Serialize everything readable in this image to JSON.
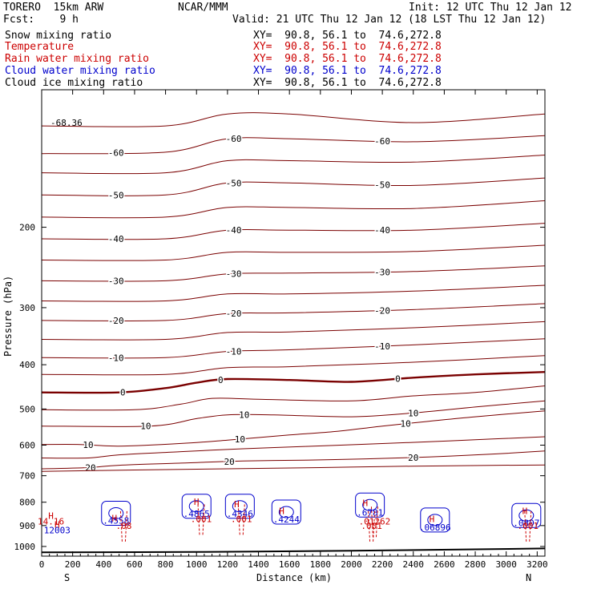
{
  "header": {
    "model": "TORERO  15km ARW",
    "org": "NCAR/MMM",
    "init": "Init: 12 UTC Thu 12 Jan 12",
    "fcst": "Fcst:    9 h",
    "valid": "Valid: 21 UTC Thu 12 Jan 12 (18 LST Thu 12 Jan 12)"
  },
  "legend": [
    {
      "name": "Snow mixing ratio",
      "color": "#000000",
      "xy": "XY=  90.8, 56.1 to  74.6,272.8",
      "xy_color": "#000000"
    },
    {
      "name": "Temperature",
      "color": "#cc0000",
      "xy": "XY=  90.8, 56.1 to  74.6,272.8",
      "xy_color": "#cc0000"
    },
    {
      "name": "Rain water mixing ratio",
      "color": "#cc0000",
      "xy": "XY=  90.8, 56.1 to  74.6,272.8",
      "xy_color": "#cc0000"
    },
    {
      "name": "Cloud water mixing ratio",
      "color": "#0000cc",
      "xy": "XY=  90.8, 56.1 to  74.6,272.8",
      "xy_color": "#0000cc"
    },
    {
      "name": "Cloud ice mixing ratio",
      "color": "#000000",
      "xy": "XY=  90.8, 56.1 to  74.6,272.8",
      "xy_color": "#000000"
    }
  ],
  "chart_data": {
    "type": "contour",
    "xlabel": "Distance (km)",
    "ylabel": "Pressure (hPa)",
    "x_range": [
      0,
      3250
    ],
    "y_range": [
      1050,
      100
    ],
    "x_ticks": [
      0,
      200,
      400,
      600,
      800,
      1000,
      1200,
      1400,
      1600,
      1800,
      2000,
      2200,
      2400,
      2600,
      2800,
      3000,
      3200
    ],
    "y_ticks": [
      200,
      300,
      400,
      500,
      600,
      700,
      800,
      900,
      1000
    ],
    "y_log_scale": true,
    "left_end": "S",
    "right_end": "N",
    "temperature_color": "#7a0000",
    "cloud_color": "#0000cc",
    "rain_color": "#cc0000",
    "temperature_isotherms": [
      {
        "temp": -65,
        "points": [
          [
            0,
            120
          ],
          [
            800,
            120
          ],
          [
            1200,
            113
          ],
          [
            1600,
            113
          ],
          [
            2400,
            118
          ],
          [
            3250,
            113
          ]
        ]
      },
      {
        "temp": -60,
        "points": [
          [
            0,
            138
          ],
          [
            800,
            137
          ],
          [
            1200,
            128
          ],
          [
            1600,
            128
          ],
          [
            2400,
            130
          ],
          [
            3250,
            126
          ]
        ]
      },
      {
        "temp": -55,
        "points": [
          [
            0,
            152
          ],
          [
            800,
            152
          ],
          [
            1200,
            143
          ],
          [
            1600,
            143
          ],
          [
            2400,
            144
          ],
          [
            3250,
            139
          ]
        ]
      },
      {
        "temp": -50,
        "points": [
          [
            0,
            170
          ],
          [
            800,
            170
          ],
          [
            1200,
            160
          ],
          [
            1600,
            160
          ],
          [
            2400,
            162
          ],
          [
            3250,
            156
          ]
        ]
      },
      {
        "temp": -45,
        "points": [
          [
            0,
            190
          ],
          [
            800,
            190
          ],
          [
            1200,
            181
          ],
          [
            1600,
            181
          ],
          [
            2400,
            182
          ],
          [
            3250,
            175
          ]
        ]
      },
      {
        "temp": -40,
        "points": [
          [
            0,
            212
          ],
          [
            800,
            212
          ],
          [
            1200,
            203
          ],
          [
            1600,
            203
          ],
          [
            2400,
            203
          ],
          [
            3250,
            196
          ]
        ]
      },
      {
        "temp": -35,
        "points": [
          [
            0,
            236
          ],
          [
            800,
            236
          ],
          [
            1200,
            227
          ],
          [
            1600,
            227
          ],
          [
            2400,
            226
          ],
          [
            3250,
            219
          ]
        ]
      },
      {
        "temp": -30,
        "points": [
          [
            0,
            262
          ],
          [
            800,
            262
          ],
          [
            1200,
            253
          ],
          [
            1600,
            252
          ],
          [
            2400,
            250
          ],
          [
            3250,
            243
          ]
        ]
      },
      {
        "temp": -25,
        "points": [
          [
            0,
            290
          ],
          [
            800,
            290
          ],
          [
            1200,
            280
          ],
          [
            1600,
            280
          ],
          [
            2400,
            276
          ],
          [
            3250,
            268
          ]
        ]
      },
      {
        "temp": -20,
        "points": [
          [
            0,
            320
          ],
          [
            800,
            320
          ],
          [
            1200,
            309
          ],
          [
            1600,
            308
          ],
          [
            2400,
            303
          ],
          [
            3250,
            294
          ]
        ]
      },
      {
        "temp": -15,
        "points": [
          [
            0,
            352
          ],
          [
            800,
            352
          ],
          [
            1200,
            340
          ],
          [
            1600,
            339
          ],
          [
            2400,
            332
          ],
          [
            3250,
            322
          ]
        ]
      },
      {
        "temp": -10,
        "points": [
          [
            0,
            386
          ],
          [
            800,
            386
          ],
          [
            1200,
            374
          ],
          [
            1600,
            371
          ],
          [
            2400,
            362
          ],
          [
            3250,
            351
          ]
        ]
      },
      {
        "temp": -5,
        "points": [
          [
            0,
            420
          ],
          [
            800,
            420
          ],
          [
            1200,
            406
          ],
          [
            1600,
            404
          ],
          [
            2400,
            395
          ],
          [
            3250,
            382
          ]
        ]
      },
      {
        "temp": 0,
        "points": [
          [
            0,
            460
          ],
          [
            500,
            460
          ],
          [
            800,
            450
          ],
          [
            1000,
            438
          ],
          [
            1200,
            430
          ],
          [
            1600,
            432
          ],
          [
            2000,
            436
          ],
          [
            2400,
            427
          ],
          [
            2800,
            420
          ],
          [
            3250,
            415
          ]
        ]
      },
      {
        "temp": 5,
        "points": [
          [
            0,
            502
          ],
          [
            600,
            502
          ],
          [
            900,
            488
          ],
          [
            1100,
            474
          ],
          [
            1400,
            476
          ],
          [
            2000,
            480
          ],
          [
            2400,
            468
          ],
          [
            2800,
            460
          ],
          [
            3250,
            445
          ]
        ]
      },
      {
        "temp": 10,
        "points": [
          [
            0,
            545
          ],
          [
            700,
            545
          ],
          [
            1000,
            525
          ],
          [
            1200,
            515
          ],
          [
            1500,
            515
          ],
          [
            2000,
            520
          ],
          [
            2400,
            510
          ],
          [
            2800,
            495
          ],
          [
            3250,
            480
          ]
        ]
      },
      {
        "temp": 10,
        "points": [
          [
            0,
            598
          ],
          [
            250,
            598
          ],
          [
            500,
            603
          ],
          [
            900,
            595
          ],
          [
            1200,
            585
          ],
          [
            1600,
            570
          ],
          [
            1900,
            560
          ],
          [
            2200,
            545
          ],
          [
            2500,
            532
          ],
          [
            2800,
            520
          ],
          [
            3250,
            505
          ]
        ]
      },
      {
        "temp": 15,
        "points": [
          [
            0,
            640
          ],
          [
            300,
            640
          ],
          [
            500,
            630
          ],
          [
            900,
            620
          ],
          [
            1300,
            611
          ],
          [
            1700,
            604
          ],
          [
            2100,
            597
          ],
          [
            2500,
            590
          ],
          [
            2900,
            582
          ],
          [
            3250,
            575
          ]
        ]
      },
      {
        "temp": 20,
        "points": [
          [
            0,
            676
          ],
          [
            300,
            672
          ],
          [
            500,
            664
          ],
          [
            900,
            657
          ],
          [
            1300,
            650
          ],
          [
            1700,
            647
          ],
          [
            2100,
            643
          ],
          [
            2500,
            637
          ],
          [
            2900,
            628
          ],
          [
            3250,
            618
          ]
        ]
      },
      {
        "temp": 25,
        "points": [
          [
            0,
            685
          ],
          [
            600,
            680
          ],
          [
            1200,
            676
          ],
          [
            1800,
            672
          ],
          [
            2400,
            667
          ],
          [
            3250,
            663
          ]
        ]
      }
    ],
    "ground_surface": [
      [
        0,
        1030
      ],
      [
        1000,
        1028
      ],
      [
        2000,
        1022
      ],
      [
        3250,
        1010
      ]
    ],
    "cloud_water_features": [
      {
        "x": 480,
        "p": 870,
        "label": ".4558"
      },
      {
        "x": 1000,
        "p": 840,
        "label": ".4865"
      },
      {
        "x": 1280,
        "p": 840,
        "label": ".4346"
      },
      {
        "x": 1580,
        "p": 865,
        "label": ".4244"
      },
      {
        "x": 2120,
        "p": 835,
        "label": ".6781"
      },
      {
        "x": 2540,
        "p": 900,
        "label": ".06896"
      },
      {
        "x": 3130,
        "p": 880,
        "label": ".0807"
      }
    ],
    "rain_features": [
      {
        "x": 530,
        "p": 900,
        "label": ".08"
      },
      {
        "x": 1030,
        "p": 870,
        "label": ".001"
      },
      {
        "x": 1290,
        "p": 870,
        "label": ".001"
      },
      {
        "x": 2150,
        "p": 880,
        "label": ".01262"
      },
      {
        "x": 2130,
        "p": 900,
        "label": ".001"
      },
      {
        "x": 3140,
        "p": 900,
        "label": ".001"
      }
    ],
    "highs": [
      {
        "x": 60,
        "p": 870,
        "label": "H"
      },
      {
        "x": 100,
        "p": 910,
        "label": "H"
      },
      {
        "x": 470,
        "p": 880,
        "label": "H"
      },
      {
        "x": 1000,
        "p": 810,
        "label": "H"
      },
      {
        "x": 1260,
        "p": 820,
        "label": "H"
      },
      {
        "x": 1550,
        "p": 850,
        "label": "H"
      },
      {
        "x": 2090,
        "p": 815,
        "label": "H"
      },
      {
        "x": 2520,
        "p": 885,
        "label": "H"
      },
      {
        "x": 3120,
        "p": 850,
        "label": "H"
      }
    ],
    "text_annotations": [
      {
        "x": 60,
        "p": 895,
        "text": "14.16",
        "color": "#cc0000"
      },
      {
        "x": 100,
        "p": 935,
        "text": "12003",
        "color": "#0000cc"
      },
      {
        "x": 160,
        "p": 120,
        "text": "-68.36",
        "color": "#000000"
      }
    ]
  }
}
